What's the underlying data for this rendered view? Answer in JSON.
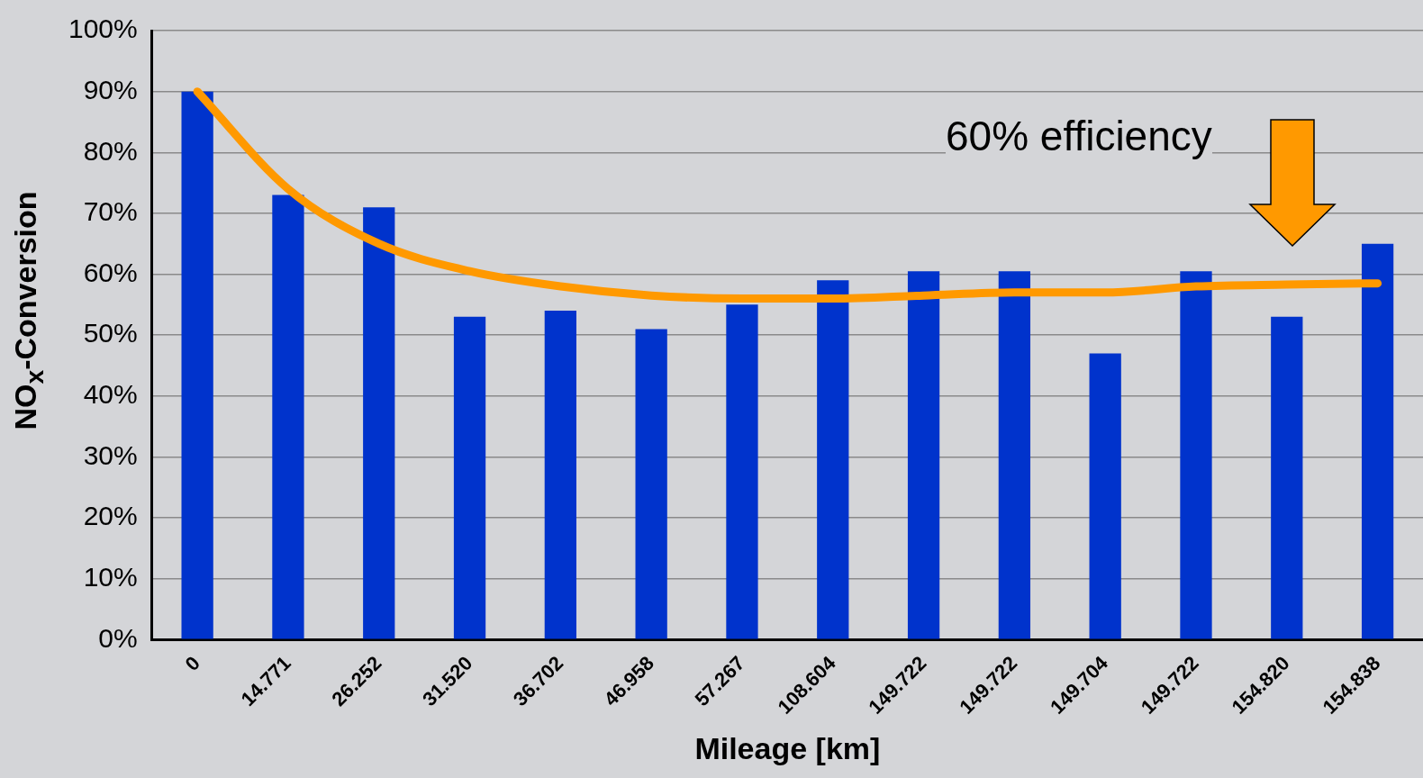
{
  "chart_data": {
    "type": "bar",
    "xlabel": "Mileage [km]",
    "ylabel": "NO$_{x}$-Conversion",
    "categories": [
      "0",
      "14.771",
      "26.252",
      "31.520",
      "36.702",
      "46.958",
      "57.267",
      "108.604",
      "149.722",
      "149.722",
      "149.704",
      "149.722",
      "154.820",
      "154.838"
    ],
    "series": [
      {
        "color": "#0033cc",
        "values": [
          90,
          73,
          71,
          53,
          54,
          51,
          55,
          59,
          60.5,
          60.5,
          47,
          60.5,
          53,
          65
        ]
      },
      {
        "type": "line",
        "color": "#ff9900",
        "values": [
          90,
          74,
          65,
          60.5,
          58,
          56.5,
          56,
          56,
          56.5,
          57,
          57,
          58,
          58.3,
          58.5
        ]
      }
    ],
    "ylim": [
      0,
      100
    ],
    "yticks": [
      {
        "value": 0,
        "label": "0%"
      },
      {
        "value": 10,
        "label": "10%"
      },
      {
        "value": 20,
        "label": "20%"
      },
      {
        "value": 30,
        "label": "30%"
      },
      {
        "value": 40,
        "label": "40%"
      },
      {
        "value": 50,
        "label": "50%"
      },
      {
        "value": 60,
        "label": "60%"
      },
      {
        "value": 70,
        "label": "70%"
      },
      {
        "value": 80,
        "label": "80%"
      },
      {
        "value": 90,
        "label": "90%"
      },
      {
        "value": 100,
        "label": "100%"
      }
    ],
    "grid": "y",
    "legend": false,
    "marker": "none",
    "annotations": [
      "60% efficiency"
    ]
  }
}
